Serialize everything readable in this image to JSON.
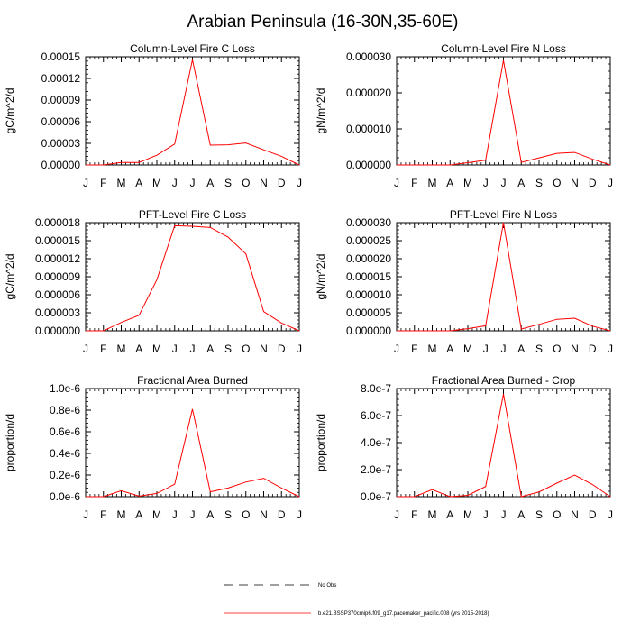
{
  "figure": {
    "title": "Arabian Peninsula (16-30N,35-60E)"
  },
  "legend": [
    {
      "label": "No Obs",
      "style": "dashed",
      "color": "#000000"
    },
    {
      "label": "b.e21.BSSP370cmip6.f09_g17.pacemaker_pacific.008 (yrs 2015-2018)",
      "style": "solid",
      "color": "#ff0000"
    }
  ],
  "chart_data": [
    {
      "type": "line",
      "title": "Column-Level Fire C Loss",
      "ylabel": "gC/m^2/d",
      "categories": [
        "J",
        "F",
        "M",
        "A",
        "M",
        "J",
        "J",
        "A",
        "S",
        "O",
        "N",
        "D",
        "J"
      ],
      "ylim": [
        0,
        0.00015
      ],
      "yticks": [
        "0.00000",
        "0.00003",
        "0.00006",
        "0.00009",
        "0.00012",
        "0.00015"
      ],
      "series": [
        {
          "color": "#ff0000",
          "values": [
            0,
            0,
            3.5e-06,
            3.5e-06,
            1.35e-05,
            2.9e-05,
            0.000146,
            2.75e-05,
            2.8e-05,
            3.05e-05,
            2.1e-05,
            1.2e-05,
            0
          ]
        }
      ]
    },
    {
      "type": "line",
      "title": "Column-Level Fire N Loss",
      "ylabel": "gN/m^2/d",
      "categories": [
        "J",
        "F",
        "M",
        "A",
        "M",
        "J",
        "J",
        "A",
        "S",
        "O",
        "N",
        "D",
        "J"
      ],
      "ylim": [
        0,
        3.36e-05
      ],
      "yticks": [
        "0.000000",
        "0.000010",
        "0.000020",
        "0.000030"
      ],
      "series": [
        {
          "color": "#ff0000",
          "values": [
            0,
            0,
            0,
            0,
            7e-07,
            1.5e-06,
            3.25e-05,
            8e-07,
            2.2e-06,
            3.6e-06,
            3.9e-06,
            1.8e-06,
            0
          ]
        }
      ]
    },
    {
      "type": "line",
      "title": "PFT-Level Fire C Loss",
      "ylabel": "gC/m^2/d",
      "categories": [
        "J",
        "F",
        "M",
        "A",
        "M",
        "J",
        "J",
        "A",
        "S",
        "O",
        "N",
        "D",
        "J"
      ],
      "ylim": [
        0,
        1.8e-05
      ],
      "yticks": [
        "0.000000",
        "0.000003",
        "0.000006",
        "0.000009",
        "0.000012",
        "0.000015",
        "0.000018"
      ],
      "series": [
        {
          "color": "#ff0000",
          "values": [
            0,
            0,
            1.4e-06,
            2.6e-06,
            8.5e-06,
            1.75e-05,
            1.74e-05,
            1.72e-05,
            1.56e-05,
            1.28e-05,
            3.2e-06,
            1.3e-06,
            0
          ]
        }
      ]
    },
    {
      "type": "line",
      "title": "PFT-Level Fire N Loss",
      "ylabel": "gN/m^2/d",
      "categories": [
        "J",
        "F",
        "M",
        "A",
        "M",
        "J",
        "J",
        "A",
        "S",
        "O",
        "N",
        "D",
        "J"
      ],
      "ylim": [
        0,
        3e-05
      ],
      "yticks": [
        "0.000000",
        "0.000005",
        "0.000010",
        "0.000015",
        "0.000020",
        "0.000025",
        "0.000030"
      ],
      "series": [
        {
          "color": "#ff0000",
          "values": [
            0,
            0,
            0,
            0,
            6e-07,
            1.4e-06,
            3e-05,
            5e-07,
            1.8e-06,
            3.2e-06,
            3.5e-06,
            1.3e-06,
            0
          ]
        }
      ]
    },
    {
      "type": "line",
      "title": "Fractional Area Burned",
      "ylabel": "proportion/d",
      "categories": [
        "J",
        "F",
        "M",
        "A",
        "M",
        "J",
        "J",
        "A",
        "S",
        "O",
        "N",
        "D",
        "J"
      ],
      "ylim": [
        0,
        1e-06
      ],
      "yticks": [
        "0.0e-6",
        "0.2e-6",
        "0.4e-6",
        "0.6e-6",
        "0.8e-6",
        "1.0e-6"
      ],
      "series": [
        {
          "color": "#ff0000",
          "values": [
            0,
            0,
            5.5e-08,
            5e-09,
            3e-08,
            1.15e-07,
            8.1e-07,
            4.5e-08,
            8e-08,
            1.35e-07,
            1.7e-07,
            8e-08,
            0
          ]
        }
      ]
    },
    {
      "type": "line",
      "title": "Fractional Area Burned - Crop",
      "ylabel": "proportion/d",
      "categories": [
        "J",
        "F",
        "M",
        "A",
        "M",
        "J",
        "J",
        "A",
        "S",
        "O",
        "N",
        "D",
        "J"
      ],
      "ylim": [
        0,
        8e-07
      ],
      "yticks": [
        "0.0e-7",
        "2.0e-7",
        "4.0e-7",
        "6.0e-7",
        "8.0e-7"
      ],
      "series": [
        {
          "color": "#ff0000",
          "values": [
            0,
            0,
            5.2e-08,
            0,
            1e-08,
            7.5e-08,
            7.6e-07,
            0,
            3.5e-08,
            1e-07,
            1.6e-07,
            9e-08,
            0
          ]
        }
      ]
    }
  ]
}
